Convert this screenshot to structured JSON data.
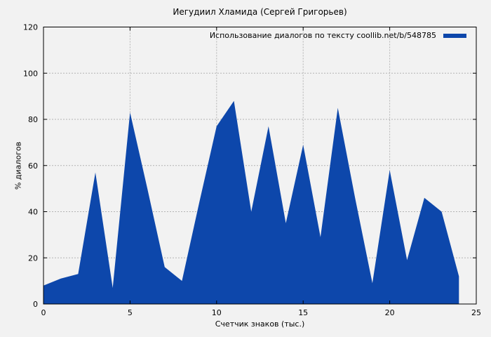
{
  "page": {
    "background": "#f2f2f2"
  },
  "title": "Иегудиил Хламида (Сергей Григорьев)",
  "legend": {
    "label": "Использование диалогов по тексту  coollib.net/b/548785",
    "swatch_color": "#0d47ab"
  },
  "chart_data": {
    "type": "area",
    "title": "Иегудиил Хламида (Сергей Григорьев)",
    "xlabel": "Счетчик знаков (тыс.)",
    "ylabel": "% диалогов",
    "xlim": [
      0,
      25
    ],
    "ylim": [
      0,
      120
    ],
    "x_ticks": [
      0,
      5,
      10,
      15,
      20,
      25
    ],
    "y_ticks": [
      0,
      20,
      40,
      60,
      80,
      100,
      120
    ],
    "grid": true,
    "grid_style": "dashed",
    "grid_color": "#b3b3b3",
    "axis_color": "#000000",
    "legend_position": "top-right",
    "series": [
      {
        "name": "Использование диалогов по тексту  coollib.net/b/548785",
        "color": "#0d47ab",
        "x": [
          0,
          1,
          2,
          3,
          4,
          5,
          6,
          7,
          8,
          9,
          10,
          11,
          12,
          13,
          14,
          15,
          16,
          17,
          18,
          19,
          20,
          21,
          22,
          23,
          24
        ],
        "values": [
          8,
          11,
          13,
          57,
          7,
          83,
          50,
          16,
          10,
          44,
          77,
          88,
          40,
          77,
          35,
          69,
          29,
          85,
          46,
          9,
          58,
          19,
          46,
          40,
          12
        ]
      }
    ]
  }
}
